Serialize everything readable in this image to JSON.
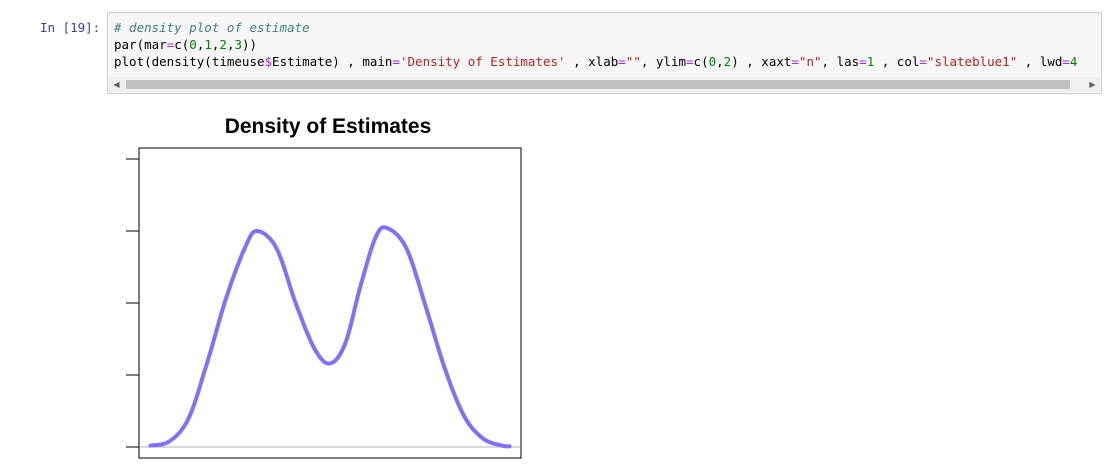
{
  "cell": {
    "prompt": "In [19]:",
    "code_lines": [
      [
        {
          "t": "# density plot of estimate",
          "c": "comment"
        }
      ],
      [
        {
          "t": "par(mar",
          "c": "plain"
        },
        {
          "t": "=",
          "c": "op"
        },
        {
          "t": "c(",
          "c": "plain"
        },
        {
          "t": "0",
          "c": "num"
        },
        {
          "t": ",",
          "c": "plain"
        },
        {
          "t": "1",
          "c": "num"
        },
        {
          "t": ",",
          "c": "plain"
        },
        {
          "t": "2",
          "c": "num"
        },
        {
          "t": ",",
          "c": "plain"
        },
        {
          "t": "3",
          "c": "num"
        },
        {
          "t": "))",
          "c": "plain"
        }
      ],
      [
        {
          "t": "plot(density(timeuse",
          "c": "plain"
        },
        {
          "t": "$",
          "c": "op"
        },
        {
          "t": "Estimate) , main",
          "c": "plain"
        },
        {
          "t": "=",
          "c": "op"
        },
        {
          "t": "'Density of Estimates'",
          "c": "str"
        },
        {
          "t": " , xlab",
          "c": "plain"
        },
        {
          "t": "=",
          "c": "op"
        },
        {
          "t": "\"\"",
          "c": "str"
        },
        {
          "t": ", ylim",
          "c": "plain"
        },
        {
          "t": "=",
          "c": "op"
        },
        {
          "t": "c(",
          "c": "plain"
        },
        {
          "t": "0",
          "c": "num"
        },
        {
          "t": ",",
          "c": "plain"
        },
        {
          "t": "2",
          "c": "num"
        },
        {
          "t": ") , xaxt",
          "c": "plain"
        },
        {
          "t": "=",
          "c": "op"
        },
        {
          "t": "\"n\"",
          "c": "str"
        },
        {
          "t": ", las",
          "c": "plain"
        },
        {
          "t": "=",
          "c": "op"
        },
        {
          "t": "1",
          "c": "num"
        },
        {
          "t": " , col",
          "c": "plain"
        },
        {
          "t": "=",
          "c": "op"
        },
        {
          "t": "\"slateblue1\"",
          "c": "str"
        },
        {
          "t": " , lwd",
          "c": "plain"
        },
        {
          "t": "=",
          "c": "op"
        },
        {
          "t": "4",
          "c": "num"
        }
      ]
    ],
    "scroll": {
      "left_arrow": "◀",
      "right_arrow": "▶"
    }
  },
  "chart_data": {
    "type": "line",
    "title": "Density of Estimates",
    "xlabel": "",
    "ylabel": "",
    "x_axis_shown": false,
    "ylim": [
      0,
      2
    ],
    "y_ticks": [
      0,
      0.5,
      1,
      1.5,
      2
    ],
    "y_tick_labels_visible": false,
    "xlim": [
      0,
      1
    ],
    "baseline_color": "#b3b3b3",
    "series": [
      {
        "color": "#836fff",
        "line_width": 4,
        "x": [
          0.03,
          0.08,
          0.13,
          0.18,
          0.23,
          0.28,
          0.31,
          0.36,
          0.41,
          0.46,
          0.5,
          0.54,
          0.58,
          0.62,
          0.65,
          0.7,
          0.75,
          0.8,
          0.85,
          0.9,
          0.95,
          0.97
        ],
        "y": [
          0.01,
          0.04,
          0.2,
          0.6,
          1.05,
          1.4,
          1.5,
          1.38,
          1.0,
          0.68,
          0.58,
          0.72,
          1.12,
          1.46,
          1.52,
          1.38,
          0.98,
          0.55,
          0.22,
          0.06,
          0.01,
          0.005
        ]
      }
    ]
  }
}
